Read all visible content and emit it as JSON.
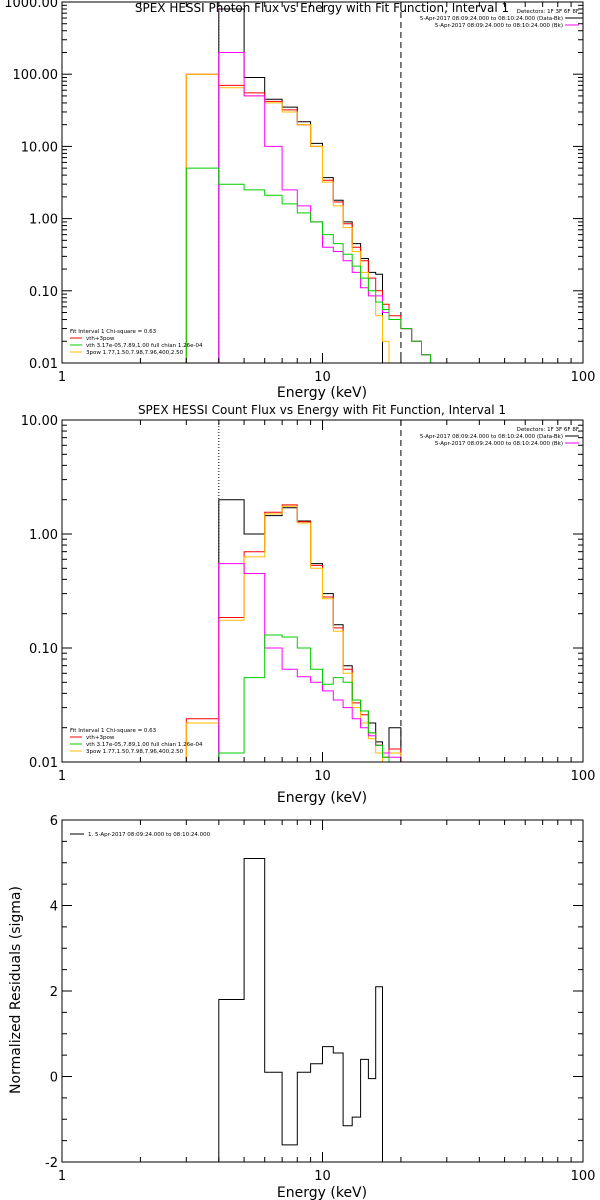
{
  "chart_data": [
    {
      "type": "line",
      "step": true,
      "title": "SPEX HESSI Photon Flux vs Energy with Fit Function, Interval 1",
      "xlabel": "Energy (keV)",
      "ylabel": "",
      "xscale": "log",
      "yscale": "log",
      "xlim": [
        1,
        100
      ],
      "ylim": [
        0.01,
        1000
      ],
      "xticks": [
        1,
        10,
        100
      ],
      "xticklabels": [
        "1",
        "10",
        "100"
      ],
      "yticks": [
        0.01,
        0.1,
        1,
        10,
        100,
        1000
      ],
      "yticklabels": [
        "0.01",
        "0.10",
        "1.00",
        "10.00",
        "100.00",
        "1000.00"
      ],
      "vlines": [
        {
          "x": 4,
          "style": "dotted",
          "color": "#ff00ff"
        },
        {
          "x": 20,
          "style": "dashed",
          "color": "#000000"
        }
      ],
      "edges": [
        3,
        4,
        5,
        6,
        7,
        8,
        9,
        10,
        11,
        12,
        13,
        14,
        15,
        16,
        17,
        18,
        20,
        22,
        24,
        26,
        28,
        30
      ],
      "legend_topright": {
        "title": "Detectors: 1F 3F 6F 8F",
        "entries": [
          {
            "text": "5-Apr-2017 08:09:24.000 to 08:10:24.000 (Data-Bk)",
            "color": "#000000"
          },
          {
            "text": "5-Apr-2017 08:09:24.000 to 08:10:24.000 (Bk)",
            "color": "#ff00ff"
          }
        ]
      },
      "legend_bottomleft": {
        "title": "Fit Interval 1    Chi-square = 0.63",
        "entries": [
          {
            "text": "vth+3pow",
            "color": "#ff0000"
          },
          {
            "text": "vth 3.17e-05,7.89,1.00   full chian 1.26e-04",
            "color": "#00cc00"
          },
          {
            "text": "3pow 1.77,1.50,7.98,7.96,400,2.50",
            "color": "#ffbb00"
          }
        ]
      },
      "series": [
        {
          "color": "#000000",
          "values": [
            null,
            800,
            90,
            45,
            35,
            22,
            11,
            3.7,
            1.8,
            0.9,
            0.45,
            0.28,
            0.18,
            0.17,
            null,
            null,
            null,
            null,
            null,
            null,
            null
          ]
        },
        {
          "color": "#ff0000",
          "values": [
            100,
            70,
            55,
            42,
            32,
            20,
            10,
            3.4,
            1.7,
            0.85,
            0.4,
            0.26,
            0.15,
            0.1,
            0.065,
            0.045,
            0.03,
            0.02,
            0.013,
            0.01,
            null
          ]
        },
        {
          "color": "#ffbb00",
          "values": [
            100,
            65,
            50,
            40,
            30,
            20,
            10,
            3.2,
            1.5,
            0.75,
            0.35,
            0.18,
            0.085,
            0.045,
            0.02,
            null,
            null,
            null,
            null,
            null,
            null
          ]
        },
        {
          "color": "#ff00ff",
          "values": [
            null,
            200,
            50,
            10,
            2.5,
            1.5,
            0.9,
            0.4,
            0.35,
            0.26,
            0.18,
            0.11,
            0.085,
            0.085,
            0.05,
            0.04,
            0.03,
            0.02,
            0.013,
            0.01,
            null
          ]
        },
        {
          "color": "#00cc00",
          "values": [
            5,
            3,
            2.5,
            2.1,
            1.6,
            1.2,
            0.9,
            0.6,
            0.45,
            0.32,
            0.22,
            0.15,
            0.1,
            0.07,
            0.055,
            0.04,
            0.03,
            0.02,
            0.013,
            0.01,
            null
          ]
        }
      ]
    },
    {
      "type": "line",
      "step": true,
      "title": "SPEX HESSI Count Flux vs Energy with Fit Function, Interval 1",
      "xlabel": "Energy (keV)",
      "ylabel": "",
      "xscale": "log",
      "yscale": "log",
      "xlim": [
        1,
        100
      ],
      "ylim": [
        0.01,
        10
      ],
      "xticks": [
        1,
        10,
        100
      ],
      "xticklabels": [
        "1",
        "10",
        "100"
      ],
      "yticks": [
        0.01,
        0.1,
        1,
        10
      ],
      "yticklabels": [
        "0.01",
        "0.10",
        "1.00",
        "10.00"
      ],
      "vlines": [
        {
          "x": 4,
          "style": "dotted",
          "color": "#000000"
        },
        {
          "x": 20,
          "style": "dashed",
          "color": "#000000"
        }
      ],
      "edges": [
        3,
        4,
        5,
        6,
        7,
        8,
        9,
        10,
        11,
        12,
        13,
        14,
        15,
        16,
        17,
        18,
        20
      ],
      "legend_topright": {
        "title": "Detectors: 1F 3F 6F 8F",
        "entries": [
          {
            "text": "5-Apr-2017 08:09:24.000 to 08:10:24.000 (Data-Bk)",
            "color": "#000000"
          },
          {
            "text": "5-Apr-2017 08:09:24.000 to 08:10:24.000 (Bk)",
            "color": "#ff00ff"
          }
        ]
      },
      "legend_bottomleft": {
        "title": "Fit Interval 1    Chi-square = 0.63",
        "entries": [
          {
            "text": "vth+3pow",
            "color": "#ff0000"
          },
          {
            "text": "vth 3.17e-05,7.89,1.00   full chian 1.26e-04",
            "color": "#00cc00"
          },
          {
            "text": "3pow 1.77,1.50,7.98,7.96,400,2.50",
            "color": "#ffbb00"
          }
        ]
      },
      "series": [
        {
          "color": "#000000",
          "values": [
            null,
            2.0,
            1.0,
            1.45,
            1.7,
            1.3,
            0.55,
            0.3,
            0.16,
            0.07,
            0.035,
            0.028,
            0.022,
            0.015,
            0.012,
            0.02
          ]
        },
        {
          "color": "#ff0000",
          "values": [
            0.024,
            0.185,
            0.7,
            1.55,
            1.8,
            1.28,
            0.53,
            0.28,
            0.15,
            0.065,
            0.033,
            0.026,
            0.018,
            0.014,
            0.011,
            0.013
          ]
        },
        {
          "color": "#ffbb00",
          "values": [
            0.022,
            0.175,
            0.63,
            1.5,
            1.75,
            1.25,
            0.5,
            0.27,
            0.14,
            0.06,
            0.03,
            0.022,
            0.016,
            0.012,
            0.01,
            0.012
          ]
        },
        {
          "color": "#ff00ff",
          "values": [
            null,
            0.55,
            0.45,
            0.1,
            0.065,
            0.056,
            0.05,
            0.042,
            0.035,
            0.03,
            0.024,
            0.02,
            0.017,
            0.014,
            0.012,
            0.011
          ]
        },
        {
          "color": "#00cc00",
          "values": [
            null,
            0.012,
            0.055,
            0.13,
            0.125,
            0.1,
            0.065,
            0.048,
            0.055,
            0.05,
            0.035,
            0.028,
            0.018,
            0.014,
            0.011,
            0.01
          ]
        }
      ]
    },
    {
      "type": "line",
      "step": true,
      "title": "",
      "xlabel": "Energy (keV)",
      "ylabel": "Normalized Residuals (sigma)",
      "xscale": "log",
      "yscale": "linear",
      "xlim": [
        1,
        100
      ],
      "ylim": [
        -2,
        6
      ],
      "xticks": [
        1,
        10,
        100
      ],
      "xticklabels": [
        "1",
        "10",
        "100"
      ],
      "yticks": [
        -2,
        0,
        2,
        4,
        6
      ],
      "yticklabels": [
        "-2",
        "0",
        "2",
        "4",
        "6"
      ],
      "edges": [
        4,
        5,
        6,
        7,
        8,
        9,
        10,
        11,
        12,
        13,
        14,
        15,
        16,
        17,
        18,
        20
      ],
      "legend_topleft": {
        "entries": [
          {
            "text": "1.  5-Apr-2017 08:09:24.000 to 08:10:24.000",
            "color": "#000000"
          }
        ]
      },
      "series": [
        {
          "color": "#000000",
          "values": [
            1.8,
            5.1,
            0.1,
            -1.6,
            0.1,
            0.3,
            0.7,
            0.55,
            -1.15,
            -0.95,
            0.4,
            -0.05,
            2.1,
            null,
            null
          ]
        }
      ]
    }
  ]
}
